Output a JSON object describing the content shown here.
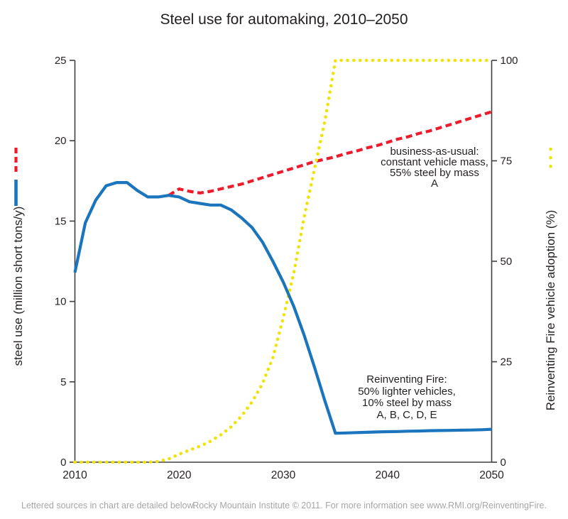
{
  "footer": {
    "left": "Lettered sources in chart are detailed below.",
    "right": "Rocky Mountain Institute © 2011. For more information see www.RMI.org/ReinventingFire."
  },
  "annotations": {
    "bau": {
      "lines": [
        "business-as-usual:",
        "constant vehicle mass,",
        "55% steel by mass",
        "A"
      ]
    },
    "rf": {
      "lines": [
        "Reinventing Fire:",
        "50% lighter vehicles,",
        "10% steel by mass",
        "A, B, C, D, E"
      ]
    }
  },
  "colors": {
    "steel_blue": "#1b75bc",
    "bau_red": "#ec1c2d",
    "adoption_yellow": "#f0e30c",
    "axis": "#404040",
    "footer_gray": "#a6a6a6"
  },
  "chart_data": {
    "type": "line",
    "title": "Steel use for automaking, 2010–2050",
    "grid": false,
    "x": {
      "range": [
        2010,
        2050
      ],
      "ticks": [
        2010,
        2020,
        2030,
        2040,
        2050
      ]
    },
    "y_left": {
      "label": "steel use (million short tons/y)",
      "range": [
        0,
        25
      ],
      "ticks": [
        0,
        5,
        10,
        15,
        20,
        25
      ]
    },
    "y_right": {
      "label": "Reinventing Fire vehicle adoption (%)",
      "range": [
        0,
        100
      ],
      "ticks": [
        0,
        25,
        50,
        75,
        100
      ]
    },
    "series": [
      {
        "name": "business-as-usual steel use",
        "axis": "left",
        "style": "dashed",
        "color": "#ec1c2d",
        "start_year": 2019,
        "values": [
          16.6,
          17.0,
          16.85,
          16.75,
          16.85,
          17.0,
          17.15,
          17.3,
          17.5,
          17.7,
          17.9,
          18.1,
          18.3,
          18.5,
          18.7,
          18.85,
          19.0,
          19.2,
          19.35,
          19.55,
          19.7,
          19.9,
          20.1,
          20.25,
          20.45,
          20.6,
          20.8,
          21.0,
          21.2,
          21.4,
          21.6,
          21.8
        ]
      },
      {
        "name": "Reinventing Fire vehicle adoption",
        "axis": "right",
        "style": "dotted",
        "color": "#f0e30c",
        "start_year": 2010,
        "values": [
          0,
          0,
          0,
          0,
          0,
          0,
          0,
          0,
          0.2,
          0.8,
          2,
          3,
          4,
          5.2,
          6.8,
          8.8,
          11.5,
          15,
          19.5,
          26,
          36,
          47,
          61,
          73,
          85,
          100,
          100,
          100,
          100,
          100,
          100,
          100,
          100,
          100,
          100,
          100,
          100,
          100,
          100,
          100,
          100
        ]
      },
      {
        "name": "Reinventing Fire steel use",
        "axis": "left",
        "style": "solid",
        "color": "#1b75bc",
        "start_year": 2010,
        "values": [
          11.8,
          14.9,
          16.3,
          17.2,
          17.4,
          17.4,
          16.9,
          16.5,
          16.5,
          16.6,
          16.5,
          16.2,
          16.1,
          16.0,
          16.0,
          15.7,
          15.2,
          14.6,
          13.7,
          12.5,
          11.2,
          9.7,
          7.9,
          5.9,
          3.8,
          1.8,
          1.82,
          1.84,
          1.86,
          1.88,
          1.9,
          1.91,
          1.93,
          1.94,
          1.96,
          1.97,
          1.98,
          1.99,
          2.0,
          2.02,
          2.05
        ]
      }
    ]
  }
}
